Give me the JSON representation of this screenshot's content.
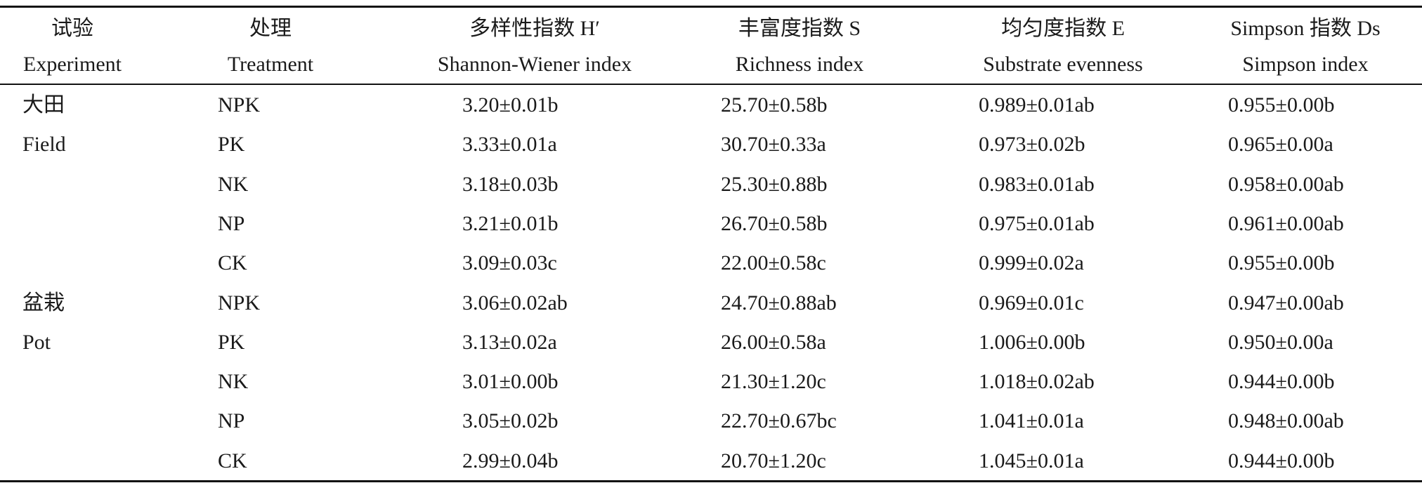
{
  "table": {
    "header": [
      [
        "试验",
        "Experiment"
      ],
      [
        "处理",
        "Treatment"
      ],
      [
        "多样性指数 H′",
        "Shannon-Wiener index"
      ],
      [
        "丰富度指数 S",
        "Richness index"
      ],
      [
        "均匀度指数 E",
        "Substrate evenness"
      ],
      [
        "Simpson 指数 Ds",
        "Simpson index"
      ]
    ],
    "groups": [
      {
        "label": [
          "大田",
          "Field"
        ],
        "rows": [
          [
            "NPK",
            "3.20±0.01b",
            "25.70±0.58b",
            "0.989±0.01ab",
            "0.955±0.00b"
          ],
          [
            "PK",
            "3.33±0.01a",
            "30.70±0.33a",
            "0.973±0.02b",
            "0.965±0.00a"
          ],
          [
            "NK",
            "3.18±0.03b",
            "25.30±0.88b",
            "0.983±0.01ab",
            "0.958±0.00ab"
          ],
          [
            "NP",
            "3.21±0.01b",
            "26.70±0.58b",
            "0.975±0.01ab",
            "0.961±0.00ab"
          ],
          [
            "CK",
            "3.09±0.03c",
            "22.00±0.58c",
            "0.999±0.02a",
            "0.955±0.00b"
          ]
        ]
      },
      {
        "label": [
          "盆栽",
          "Pot"
        ],
        "rows": [
          [
            "NPK",
            "3.06±0.02ab",
            "24.70±0.88ab",
            "0.969±0.01c",
            "0.947±0.00ab"
          ],
          [
            "PK",
            "3.13±0.02a",
            "26.00±0.58a",
            "1.006±0.00b",
            "0.950±0.00a"
          ],
          [
            "NK",
            "3.01±0.00b",
            "21.30±1.20c",
            "1.018±0.02ab",
            "0.944±0.00b"
          ],
          [
            "NP",
            "3.05±0.02b",
            "22.70±0.67bc",
            "1.041±0.01a",
            "0.948±0.00ab"
          ],
          [
            "CK",
            "2.99±0.04b",
            "20.70±1.20c",
            "1.045±0.01a",
            "0.944±0.00b"
          ]
        ]
      }
    ]
  }
}
